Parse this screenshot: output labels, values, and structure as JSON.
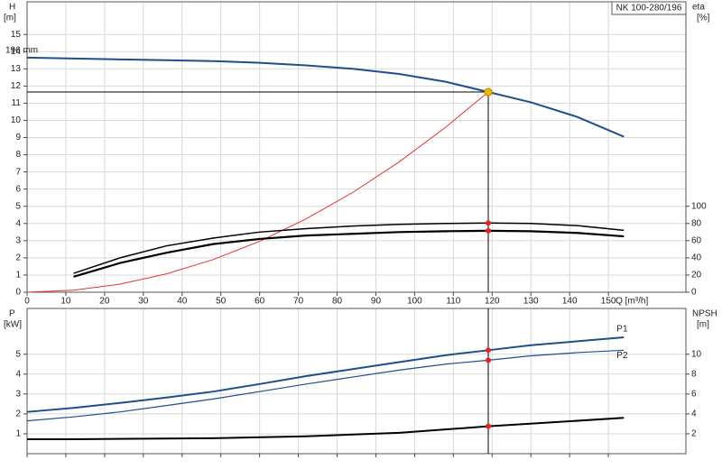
{
  "chart_data": [
    {
      "type": "line",
      "title": "NK 100-280/196",
      "xlabel": "Q [m³/h]",
      "ylabel": "H",
      "yunit": "[m]",
      "y2label": "eta",
      "y2unit": "[%]",
      "xlim": [
        0,
        170
      ],
      "xticks": [
        0,
        10,
        20,
        30,
        40,
        50,
        60,
        70,
        80,
        90,
        100,
        110,
        120,
        130,
        140,
        150
      ],
      "ylim": [
        0,
        16.9
      ],
      "yticks": [
        0,
        1,
        2,
        3,
        4,
        5,
        6,
        7,
        8,
        9,
        10,
        11,
        12,
        13,
        14,
        15
      ],
      "y2lim": [
        0,
        338
      ],
      "y2ticks": [
        0,
        20,
        40,
        60,
        80,
        100
      ],
      "grid": true,
      "operating_point": {
        "x": 119,
        "y": 11.65,
        "color": "#f5b400"
      },
      "series": [
        {
          "name": "196 mm",
          "name_position": "start",
          "color": "#1f4e8c",
          "width": 2,
          "x": [
            0,
            12,
            24,
            36,
            48,
            60,
            72,
            84,
            96,
            108,
            119,
            130,
            142,
            154
          ],
          "values": [
            13.65,
            13.6,
            13.55,
            13.5,
            13.45,
            13.35,
            13.2,
            13.0,
            12.7,
            12.25,
            11.65,
            11.05,
            10.2,
            9.05
          ]
        },
        {
          "color": "#e83030",
          "width": 1,
          "x": [
            0,
            12,
            24,
            36,
            48,
            60,
            72,
            84,
            96,
            108,
            119
          ],
          "values": [
            0,
            0.12,
            0.47,
            1.07,
            1.9,
            2.96,
            4.27,
            5.8,
            7.58,
            9.6,
            11.65
          ]
        },
        {
          "color": "#000000",
          "width": 1.5,
          "axis": "y2",
          "x": [
            12,
            24,
            36,
            48,
            60,
            72,
            84,
            96,
            108,
            119,
            130,
            142,
            154
          ],
          "values": [
            22,
            40,
            54,
            63,
            70,
            74,
            77,
            79,
            80,
            80.5,
            80,
            77.5,
            72
          ]
        },
        {
          "color": "#000000",
          "width": 2.2,
          "axis": "y2",
          "x": [
            12,
            24,
            36,
            48,
            60,
            72,
            84,
            96,
            108,
            119,
            130,
            142,
            154
          ],
          "values": [
            18,
            34,
            46,
            56,
            62,
            66,
            68,
            70,
            71,
            71.5,
            71,
            69,
            65
          ]
        }
      ]
    },
    {
      "type": "line",
      "ylabel": "P",
      "yunit": "[kW]",
      "y2label": "NPSH",
      "y2unit": "[m]",
      "xlim": [
        0,
        170
      ],
      "xticks": [
        0,
        10,
        20,
        30,
        40,
        50,
        60,
        70,
        80,
        90,
        100,
        110,
        120,
        130,
        140,
        150
      ],
      "ylim": [
        0,
        7.3
      ],
      "yticks": [
        1,
        2,
        3,
        4,
        5
      ],
      "y2lim": [
        0,
        14.6
      ],
      "y2ticks": [
        2,
        4,
        6,
        8,
        10
      ],
      "grid": true,
      "series": [
        {
          "name": "P1",
          "name_position": "end",
          "color": "#1f4e8c",
          "width": 2,
          "x": [
            0,
            12,
            24,
            36,
            48,
            60,
            72,
            84,
            96,
            108,
            119,
            130,
            142,
            154
          ],
          "values": [
            2.1,
            2.3,
            2.55,
            2.82,
            3.12,
            3.5,
            3.9,
            4.25,
            4.6,
            4.95,
            5.2,
            5.45,
            5.65,
            5.85
          ]
        },
        {
          "name": "P2",
          "name_position": "end",
          "color": "#1f4e8c",
          "width": 1.2,
          "x": [
            0,
            12,
            24,
            36,
            48,
            60,
            72,
            84,
            96,
            108,
            119,
            130,
            142,
            154
          ],
          "values": [
            1.65,
            1.85,
            2.1,
            2.42,
            2.75,
            3.12,
            3.5,
            3.85,
            4.2,
            4.5,
            4.7,
            4.92,
            5.08,
            5.2
          ]
        },
        {
          "color": "#000000",
          "width": 2,
          "axis": "y2",
          "x": [
            0,
            12,
            48,
            72,
            96,
            119,
            154
          ],
          "values": [
            1.45,
            1.45,
            1.55,
            1.75,
            2.1,
            2.75,
            3.6
          ]
        }
      ]
    }
  ]
}
